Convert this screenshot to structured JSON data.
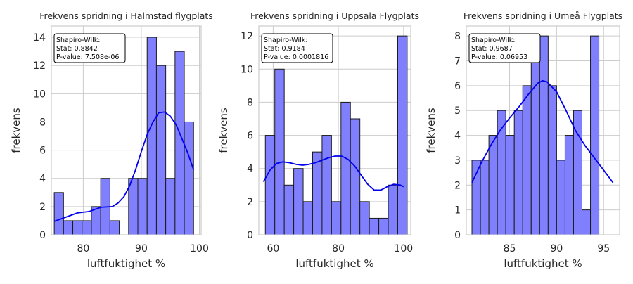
{
  "colors": {
    "bar_fill": "#8080ff",
    "bar_stroke": "#1a1a1a",
    "kde_line": "#0000ee",
    "grid": "#cccccc",
    "axes_frame": "#cccccc"
  },
  "chart_data": [
    {
      "type": "bar",
      "title": "Frekvens spridning i Halmstad flygplats",
      "xlabel": "luftfuktighet %",
      "ylabel": "frekvens",
      "xlim": [
        74.5,
        100.3
      ],
      "ylim": [
        0,
        14.8
      ],
      "xticks": [
        80,
        90,
        100
      ],
      "yticks": [
        0,
        2,
        4,
        6,
        8,
        10,
        12,
        14
      ],
      "grid": true,
      "bin_start": 75,
      "bin_width": 1.6,
      "values": [
        3,
        1,
        1,
        1,
        2,
        4,
        1,
        0,
        4,
        4,
        14,
        12,
        4,
        13,
        8
      ],
      "kde": {
        "x": [
          75,
          77,
          79,
          81,
          83,
          85,
          86,
          87,
          88,
          89,
          90,
          91,
          92,
          93,
          94,
          95,
          96,
          97,
          98,
          99
        ],
        "y": [
          0.95,
          1.25,
          1.55,
          1.65,
          1.95,
          2.0,
          2.25,
          2.7,
          3.5,
          4.6,
          5.9,
          7.1,
          8.0,
          8.65,
          8.7,
          8.4,
          7.8,
          6.8,
          5.8,
          4.6
        ]
      },
      "annotation": [
        "Shapiro-Wilk:",
        "Stat: 0.8842",
        "P-value: 7.508e-06"
      ]
    },
    {
      "type": "bar",
      "title": "Frekvens spridning i Uppsala Flygplats",
      "xlabel": "luftfuktighet %",
      "ylabel": "frekvens",
      "xlim": [
        55.6,
        102.2
      ],
      "ylim": [
        0,
        12.6
      ],
      "xticks": [
        60,
        80,
        100
      ],
      "yticks": [
        0,
        2,
        4,
        6,
        8,
        10,
        12
      ],
      "grid": true,
      "bin_start": 57.6,
      "bin_width": 2.9,
      "values": [
        6,
        10,
        3,
        4,
        2,
        5,
        6,
        2,
        8,
        7,
        2,
        1,
        1,
        3,
        12
      ],
      "kde": {
        "x": [
          57,
          59,
          61,
          63,
          65,
          67,
          69,
          71,
          73,
          75,
          77,
          79,
          81,
          83,
          85,
          87,
          89,
          91,
          93,
          95,
          97,
          99,
          100
        ],
        "y": [
          3.2,
          3.9,
          4.3,
          4.4,
          4.35,
          4.25,
          4.2,
          4.25,
          4.35,
          4.5,
          4.65,
          4.75,
          4.75,
          4.55,
          4.15,
          3.6,
          3.05,
          2.7,
          2.7,
          2.9,
          3.05,
          3.0,
          2.9
        ]
      },
      "annotation": [
        "Shapiro-Wilk:",
        "Stat: 0.9184",
        "P-value: 0.0001816"
      ]
    },
    {
      "type": "bar",
      "title": "Frekvens spridning i Umeå Flygplats",
      "xlabel": "luftfuktighet %",
      "ylabel": "frekvens",
      "xlim": [
        80.4,
        96.7
      ],
      "ylim": [
        0,
        8.4
      ],
      "xticks": [
        85,
        90,
        95
      ],
      "yticks": [
        0,
        1,
        2,
        3,
        4,
        5,
        6,
        7,
        8
      ],
      "grid": true,
      "bin_start": 81,
      "bin_width": 0.9,
      "values": [
        3,
        3,
        4,
        5,
        4,
        5,
        6,
        7,
        8,
        6,
        3,
        4,
        5,
        1,
        8
      ],
      "kde": {
        "x": [
          81,
          82,
          83,
          84,
          85,
          86,
          87,
          88,
          88.5,
          89,
          90,
          91,
          92,
          93,
          94,
          95,
          96
        ],
        "y": [
          2.1,
          2.9,
          3.6,
          4.2,
          4.7,
          5.15,
          5.65,
          6.1,
          6.2,
          6.15,
          5.75,
          5.0,
          4.2,
          3.6,
          3.1,
          2.6,
          2.1
        ]
      },
      "annotation": [
        "Shapiro-Wilk:",
        "Stat: 0.9687",
        "P-value: 0.06953"
      ]
    }
  ]
}
